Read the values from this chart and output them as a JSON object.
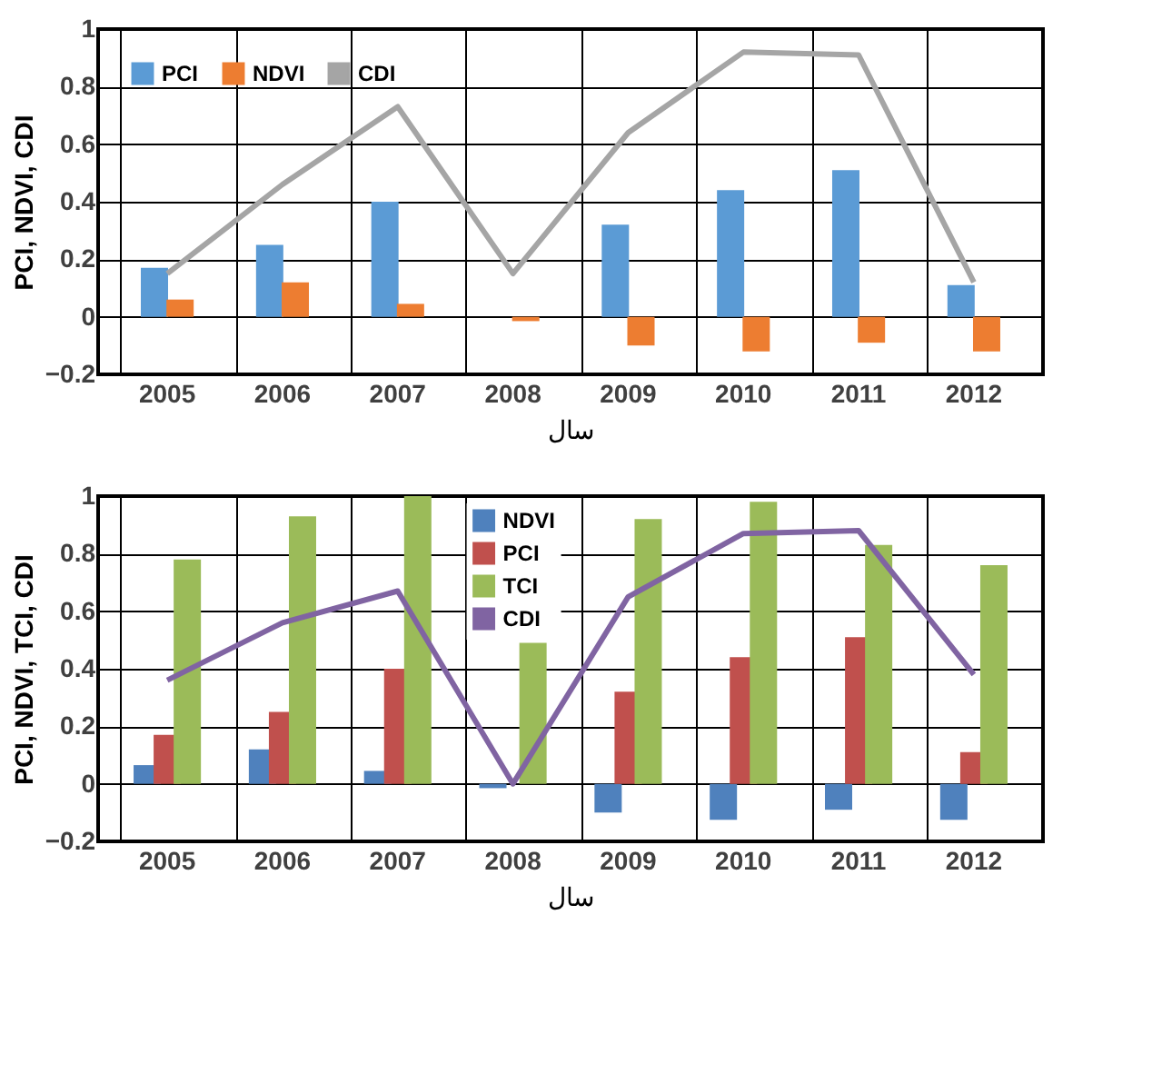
{
  "chart_data": [
    {
      "type": "bar",
      "xlabel": "سال",
      "ylabel": "PCI, NDVI, CDI",
      "categories": [
        "2005",
        "2006",
        "2007",
        "2008",
        "2009",
        "2010",
        "2011",
        "2012"
      ],
      "series": [
        {
          "name": "PCI",
          "color": "#5b9bd5",
          "values": [
            0.17,
            0.25,
            0.4,
            0.0,
            0.32,
            0.44,
            0.51,
            0.11
          ]
        },
        {
          "name": "NDVI",
          "color": "#ed7d31",
          "values": [
            0.06,
            0.12,
            0.045,
            -0.015,
            -0.1,
            -0.12,
            -0.09,
            -0.12
          ]
        },
        {
          "name": "CDI",
          "color": "#a5a5a5",
          "type": "line",
          "values": [
            0.15,
            0.46,
            0.73,
            0.15,
            0.64,
            0.92,
            0.91,
            0.12
          ]
        }
      ],
      "ylim": [
        -0.2,
        1
      ],
      "yticks": [
        -0.2,
        0,
        0.2,
        0.4,
        0.6,
        0.8,
        1
      ],
      "grid": true,
      "legend": "top left"
    },
    {
      "type": "bar",
      "xlabel": "سال",
      "ylabel": "PCI, NDVI, TCI, CDI",
      "categories": [
        "2005",
        "2006",
        "2007",
        "2008",
        "2009",
        "2010",
        "2011",
        "2012"
      ],
      "series": [
        {
          "name": "NDVI",
          "color": "#4f81bd",
          "values": [
            0.065,
            0.12,
            0.045,
            -0.015,
            -0.1,
            -0.125,
            -0.09,
            -0.125
          ]
        },
        {
          "name": "PCI",
          "color": "#c0504d",
          "values": [
            0.17,
            0.25,
            0.4,
            0.0,
            0.32,
            0.44,
            0.51,
            0.11
          ]
        },
        {
          "name": "TCI",
          "color": "#9bbb59",
          "values": [
            0.78,
            0.93,
            1.0,
            0.49,
            0.92,
            0.98,
            0.83,
            0.76
          ]
        },
        {
          "name": "CDI",
          "color": "#8064a2",
          "type": "line",
          "values": [
            0.36,
            0.56,
            0.67,
            0.0,
            0.65,
            0.87,
            0.88,
            0.38
          ]
        }
      ],
      "ylim": [
        -0.2,
        1
      ],
      "yticks": [
        -0.2,
        0,
        0.2,
        0.4,
        0.6,
        0.8,
        1
      ],
      "grid": true,
      "legend": "top"
    }
  ]
}
